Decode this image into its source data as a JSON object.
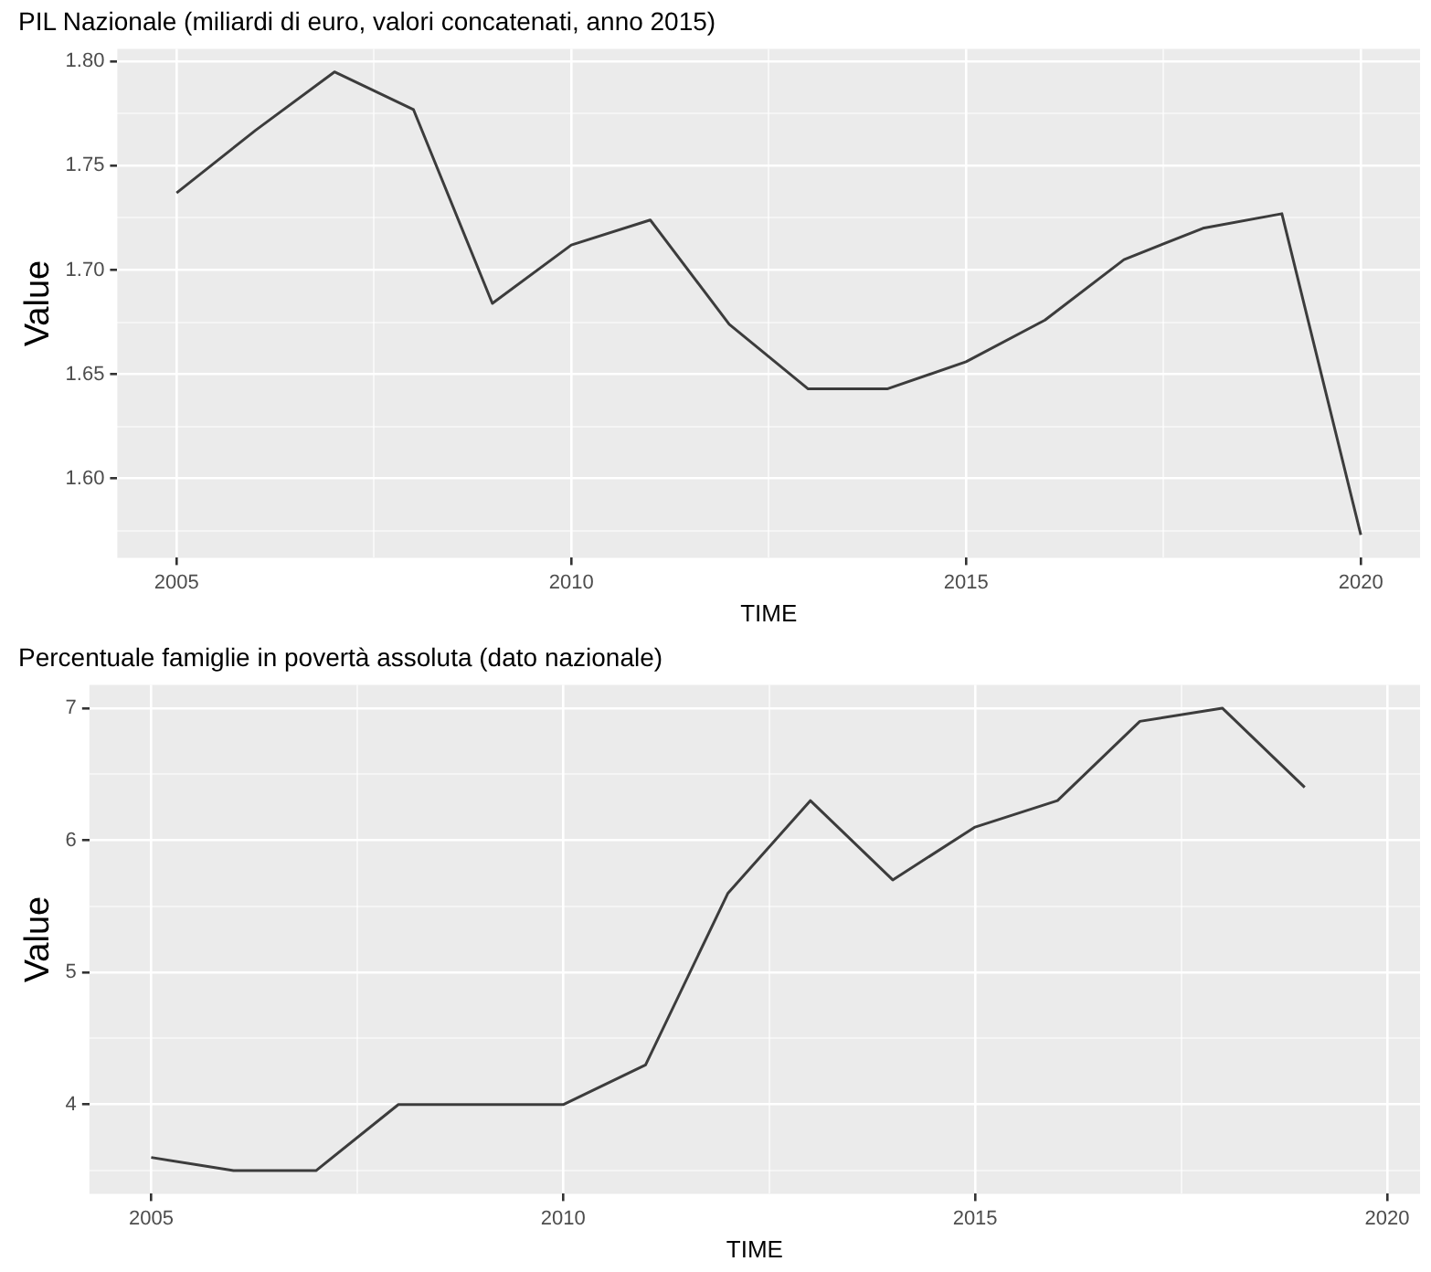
{
  "chart_data": [
    {
      "type": "line",
      "title": "PIL Nazionale (miliardi di euro, valori concatenati, anno 2015)",
      "xlabel": "TIME",
      "ylabel": "Value",
      "x": [
        2005,
        2006,
        2007,
        2008,
        2009,
        2010,
        2011,
        2012,
        2013,
        2014,
        2015,
        2016,
        2017,
        2018,
        2019,
        2020
      ],
      "series": [
        {
          "color": "#3c3c3c",
          "values": [
            1.737,
            1.767,
            1.795,
            1.777,
            1.684,
            1.712,
            1.724,
            1.674,
            1.643,
            1.643,
            1.656,
            1.676,
            1.705,
            1.72,
            1.727,
            1.573
          ]
        }
      ],
      "xlim": [
        2004.25,
        2020.75
      ],
      "xticks": [
        2005,
        {
          "value": 2007.5,
          "label": null
        },
        2010,
        {
          "value": 2012.5,
          "label": null
        },
        2015,
        {
          "value": 2017.5,
          "label": null
        },
        2020
      ],
      "ylim": [
        1.562,
        1.806
      ],
      "yticks": [
        {
          "value": 1.575,
          "label": null
        },
        {
          "value": 1.6,
          "label": "1.60"
        },
        {
          "value": 1.625,
          "label": null
        },
        {
          "value": 1.65,
          "label": "1.65"
        },
        {
          "value": 1.675,
          "label": null
        },
        {
          "value": 1.7,
          "label": "1.70"
        },
        {
          "value": 1.725,
          "label": null
        },
        {
          "value": 1.75,
          "label": "1.75"
        },
        {
          "value": 1.775,
          "label": null
        },
        {
          "value": 1.8,
          "label": "1.80"
        }
      ],
      "grid": true,
      "legend": false,
      "marker": "none",
      "line_style": "solid"
    },
    {
      "type": "line",
      "title": "Percentuale famiglie in povertà assoluta (dato nazionale)",
      "xlabel": "TIME",
      "ylabel": "Value",
      "x": [
        2005,
        2006,
        2007,
        2008,
        2009,
        2010,
        2011,
        2012,
        2013,
        2014,
        2015,
        2016,
        2017,
        2018,
        2019
      ],
      "series": [
        {
          "color": "#3c3c3c",
          "values": [
            3.6,
            3.5,
            3.5,
            4.0,
            4.0,
            4.0,
            4.3,
            5.6,
            6.3,
            5.7,
            6.1,
            6.3,
            6.9,
            7.0,
            6.4
          ]
        }
      ],
      "xlim": [
        2004.25,
        2020.4
      ],
      "xticks": [
        2005,
        {
          "value": 2007.5,
          "label": null
        },
        2010,
        {
          "value": 2012.5,
          "label": null
        },
        2015,
        {
          "value": 2017.5,
          "label": null
        },
        2020
      ],
      "ylim": [
        3.325,
        7.175
      ],
      "yticks": [
        {
          "value": 3.5,
          "label": null
        },
        4,
        {
          "value": 4.5,
          "label": null
        },
        5,
        {
          "value": 5.5,
          "label": null
        },
        6,
        {
          "value": 6.5,
          "label": null
        },
        7
      ],
      "grid": true,
      "legend": false,
      "marker": "none",
      "line_style": "solid"
    }
  ]
}
